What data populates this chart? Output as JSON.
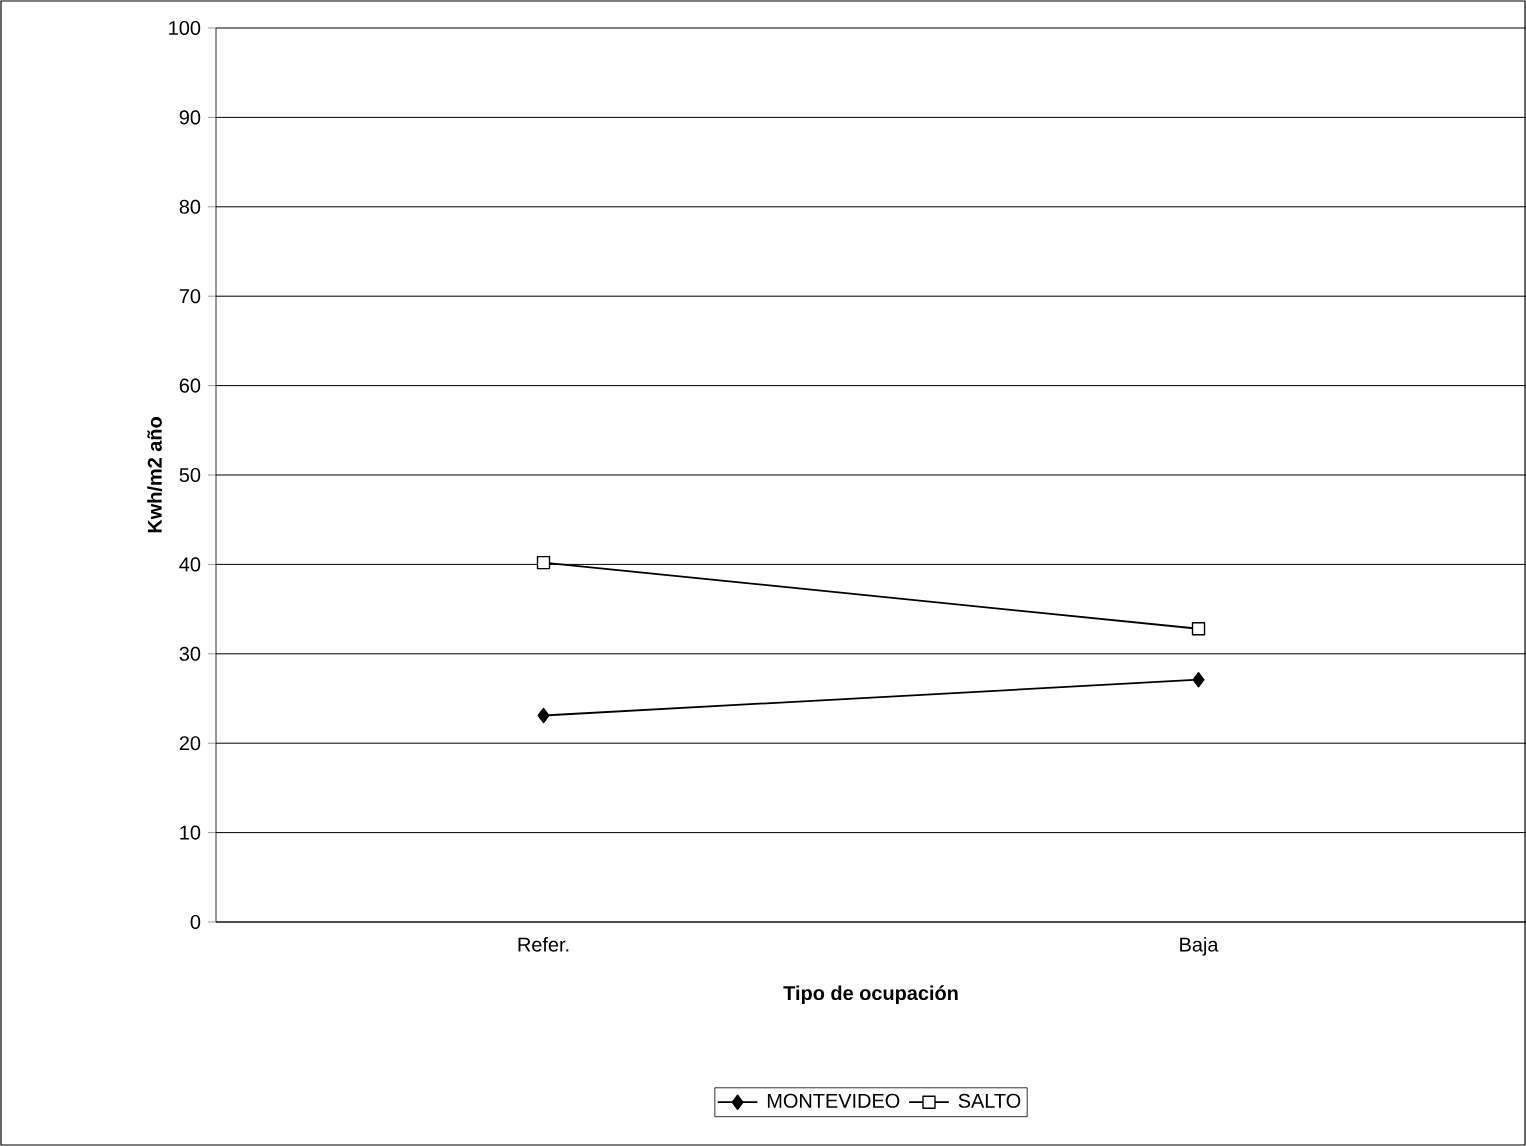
{
  "chart_data": {
    "type": "line",
    "xlabel": "Tipo de ocupación",
    "ylabel": "Kwh/m2 año",
    "categories": [
      "Refer.",
      "Baja"
    ],
    "series": [
      {
        "name": "MONTEVIDEO",
        "color": "#000000",
        "marker": "diamond",
        "values": [
          23.1,
          27.1
        ]
      },
      {
        "name": "SALTO",
        "color": "#000000",
        "marker": "square",
        "values": [
          40.2,
          32.8
        ]
      }
    ],
    "ylim": [
      0,
      100
    ],
    "yticks": [
      0,
      10,
      20,
      30,
      40,
      50,
      60,
      70,
      80,
      90,
      100
    ],
    "grid": "y",
    "legend": "bottom"
  }
}
